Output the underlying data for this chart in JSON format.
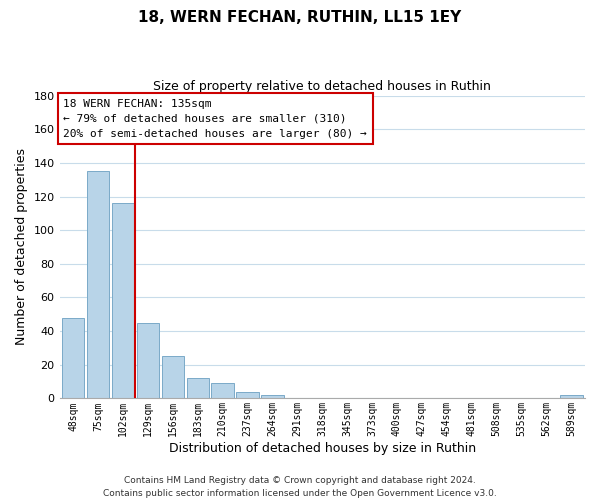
{
  "title": "18, WERN FECHAN, RUTHIN, LL15 1EY",
  "subtitle": "Size of property relative to detached houses in Ruthin",
  "xlabel": "Distribution of detached houses by size in Ruthin",
  "ylabel": "Number of detached properties",
  "bar_labels": [
    "48sqm",
    "75sqm",
    "102sqm",
    "129sqm",
    "156sqm",
    "183sqm",
    "210sqm",
    "237sqm",
    "264sqm",
    "291sqm",
    "318sqm",
    "345sqm",
    "373sqm",
    "400sqm",
    "427sqm",
    "454sqm",
    "481sqm",
    "508sqm",
    "535sqm",
    "562sqm",
    "589sqm"
  ],
  "bar_values": [
    48,
    135,
    116,
    45,
    25,
    12,
    9,
    4,
    2,
    0,
    0,
    0,
    0,
    0,
    0,
    0,
    0,
    0,
    0,
    0,
    2
  ],
  "bar_color": "#b8d4e8",
  "bar_edge_color": "#7aaac8",
  "ylim": [
    0,
    180
  ],
  "yticks": [
    0,
    20,
    40,
    60,
    80,
    100,
    120,
    140,
    160,
    180
  ],
  "vline_x_index": 2.5,
  "vline_color": "#cc0000",
  "annotation_title": "18 WERN FECHAN: 135sqm",
  "annotation_line1": "← 79% of detached houses are smaller (310)",
  "annotation_line2": "20% of semi-detached houses are larger (80) →",
  "annotation_box_color": "#ffffff",
  "annotation_box_edge": "#cc0000",
  "footer_line1": "Contains HM Land Registry data © Crown copyright and database right 2024.",
  "footer_line2": "Contains public sector information licensed under the Open Government Licence v3.0.",
  "background_color": "#ffffff",
  "grid_color": "#c8dcea"
}
